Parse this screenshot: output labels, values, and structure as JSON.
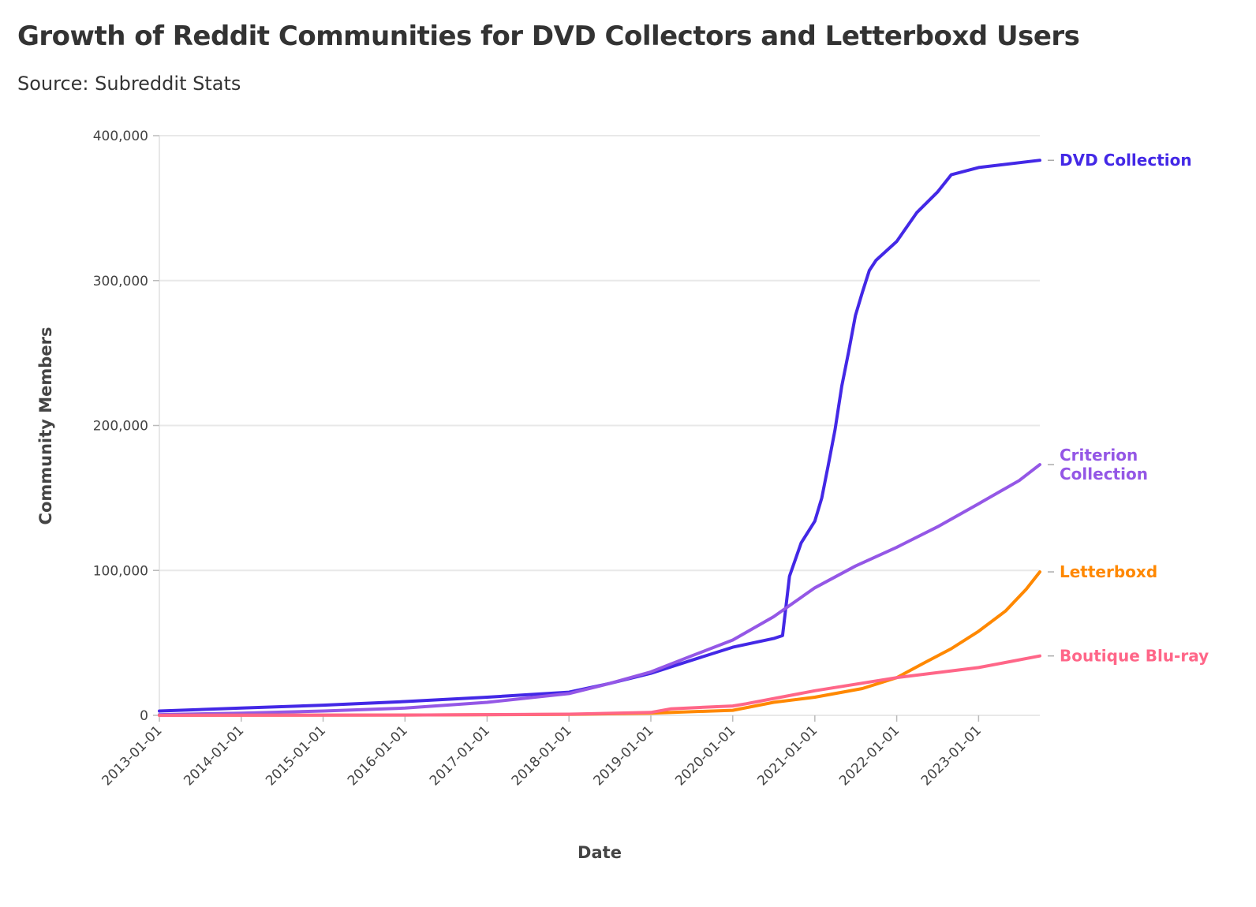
{
  "title": "Growth of Reddit Communities for DVD Collectors and Letterboxd Users",
  "subtitle": "Source: Subreddit Stats",
  "chart_data": {
    "type": "line",
    "title": "Growth of Reddit Communities for DVD Collectors and Letterboxd Users",
    "subtitle": "Source: Subreddit Stats",
    "xlabel": "Date",
    "ylabel": "Community Members",
    "xlim": [
      "2013-01-01",
      "2023-10-01"
    ],
    "ylim": [
      0,
      400000
    ],
    "grid": "horizontal",
    "legend": "direct labels at right end of lines",
    "x_ticks": [
      "2013-01-01",
      "2014-01-01",
      "2015-01-01",
      "2016-01-01",
      "2017-01-01",
      "2018-01-01",
      "2019-01-01",
      "2020-01-01",
      "2021-01-01",
      "2022-01-01",
      "2023-01-01"
    ],
    "y_ticks": [
      0,
      100000,
      200000,
      300000,
      400000
    ],
    "y_tick_labels": [
      "0",
      "100,000",
      "200,000",
      "300,000",
      "400,000"
    ],
    "series": [
      {
        "name": "DVD Collection",
        "label_lines": [
          "DVD Collection"
        ],
        "color": "#4328E6",
        "points": [
          [
            "2013-01-01",
            3000
          ],
          [
            "2014-01-01",
            5000
          ],
          [
            "2015-01-01",
            7000
          ],
          [
            "2016-01-01",
            9500
          ],
          [
            "2017-01-01",
            12500
          ],
          [
            "2018-01-01",
            16000
          ],
          [
            "2018-07-01",
            22000
          ],
          [
            "2019-01-01",
            29000
          ],
          [
            "2019-07-01",
            38000
          ],
          [
            "2020-01-01",
            47000
          ],
          [
            "2020-07-01",
            53000
          ],
          [
            "2020-08-10",
            55000
          ],
          [
            "2020-09-10",
            96000
          ],
          [
            "2020-11-01",
            119000
          ],
          [
            "2021-01-01",
            134000
          ],
          [
            "2021-02-01",
            150000
          ],
          [
            "2021-03-01",
            172000
          ],
          [
            "2021-04-01",
            197000
          ],
          [
            "2021-05-01",
            227000
          ],
          [
            "2021-06-01",
            251000
          ],
          [
            "2021-07-01",
            276000
          ],
          [
            "2021-08-01",
            292000
          ],
          [
            "2021-09-01",
            307000
          ],
          [
            "2021-10-01",
            314000
          ],
          [
            "2022-01-01",
            327000
          ],
          [
            "2022-04-01",
            347000
          ],
          [
            "2022-07-01",
            361000
          ],
          [
            "2022-09-01",
            373000
          ],
          [
            "2023-01-01",
            378000
          ],
          [
            "2023-10-01",
            383000
          ]
        ]
      },
      {
        "name": "Criterion Collection",
        "label_lines": [
          "Criterion",
          "Collection"
        ],
        "color": "#9457E6",
        "points": [
          [
            "2013-01-01",
            500
          ],
          [
            "2014-01-01",
            1500
          ],
          [
            "2015-01-01",
            3000
          ],
          [
            "2016-01-01",
            5000
          ],
          [
            "2017-01-01",
            9000
          ],
          [
            "2018-01-01",
            15000
          ],
          [
            "2018-07-01",
            22000
          ],
          [
            "2019-01-01",
            30000
          ],
          [
            "2019-07-01",
            41000
          ],
          [
            "2020-01-01",
            52000
          ],
          [
            "2020-07-01",
            68000
          ],
          [
            "2021-01-01",
            88000
          ],
          [
            "2021-07-01",
            103000
          ],
          [
            "2022-01-01",
            116000
          ],
          [
            "2022-07-01",
            130000
          ],
          [
            "2023-01-01",
            146000
          ],
          [
            "2023-07-01",
            162000
          ],
          [
            "2023-10-01",
            173000
          ]
        ]
      },
      {
        "name": "Letterboxd",
        "label_lines": [
          "Letterboxd"
        ],
        "color": "#FF8800",
        "points": [
          [
            "2013-01-01",
            0
          ],
          [
            "2016-01-01",
            200
          ],
          [
            "2018-01-01",
            700
          ],
          [
            "2019-01-01",
            1500
          ],
          [
            "2019-07-01",
            2500
          ],
          [
            "2020-01-01",
            3500
          ],
          [
            "2020-07-01",
            9000
          ],
          [
            "2021-01-01",
            12500
          ],
          [
            "2021-08-01",
            18500
          ],
          [
            "2022-01-01",
            26000
          ],
          [
            "2022-05-01",
            36000
          ],
          [
            "2022-09-01",
            46000
          ],
          [
            "2023-01-01",
            58000
          ],
          [
            "2023-05-01",
            72000
          ],
          [
            "2023-08-01",
            87000
          ],
          [
            "2023-10-01",
            99000
          ]
        ]
      },
      {
        "name": "Boutique Blu-ray",
        "label_lines": [
          "Boutique Blu-ray"
        ],
        "color": "#FF6688",
        "points": [
          [
            "2013-01-01",
            0
          ],
          [
            "2016-01-01",
            200
          ],
          [
            "2018-01-01",
            800
          ],
          [
            "2019-01-01",
            2000
          ],
          [
            "2019-04-01",
            4500
          ],
          [
            "2020-01-01",
            6500
          ],
          [
            "2020-03-01",
            8000
          ],
          [
            "2021-01-01",
            17000
          ],
          [
            "2022-01-01",
            26000
          ],
          [
            "2023-01-01",
            33000
          ],
          [
            "2023-10-01",
            41000
          ]
        ]
      }
    ]
  }
}
